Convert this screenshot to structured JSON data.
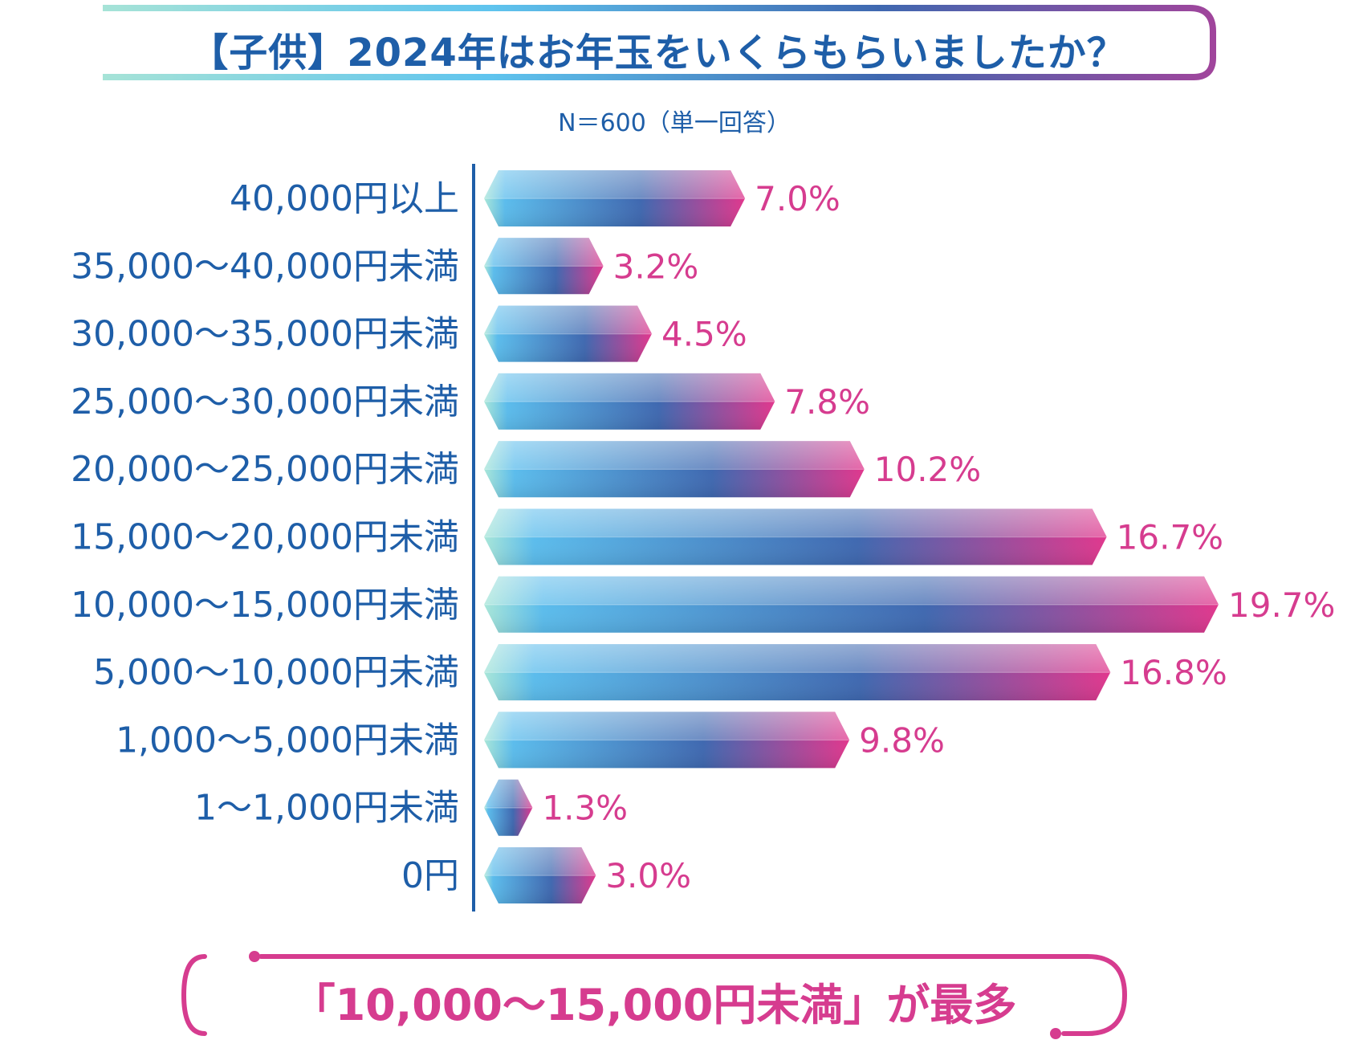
{
  "title": "【子供】2024年はお年玉をいくらもらいましたか？",
  "subtitle": "N＝600（単一回答）",
  "footer": "「10,000～15,000円未満」が最多",
  "colors": {
    "label": "#1e5ea8",
    "value": "#d63c8f",
    "axis": "#1e5ea8",
    "bar_start": "#a8e6d8",
    "bar_mid": "#5bbcec",
    "bar_blue": "#3f68b0",
    "bar_end": "#e0378d",
    "title_border_start": "#a6e3d7",
    "title_border_end": "#7b4aa0"
  },
  "chart_data": {
    "type": "bar",
    "orientation": "horizontal",
    "categories": [
      "40,000円以上",
      "35,000～40,000円未満",
      "30,000～35,000円未満",
      "25,000～30,000円未満",
      "20,000～25,000円未満",
      "15,000～20,000円未満",
      "10,000～15,000円未満",
      "5,000～10,000円未満",
      "1,000～5,000円未満",
      "1～1,000円未満",
      "0円"
    ],
    "values": [
      7.0,
      3.2,
      4.5,
      7.8,
      10.2,
      16.7,
      19.7,
      16.8,
      9.8,
      1.3,
      3.0
    ],
    "value_labels": [
      "7.0%",
      "3.2%",
      "4.5%",
      "7.8%",
      "10.2%",
      "16.7%",
      "19.7%",
      "16.8%",
      "9.8%",
      "1.3%",
      "3.0%"
    ],
    "unit": "%",
    "xlim": [
      0,
      19.7
    ],
    "grid": false,
    "legend": "none"
  }
}
